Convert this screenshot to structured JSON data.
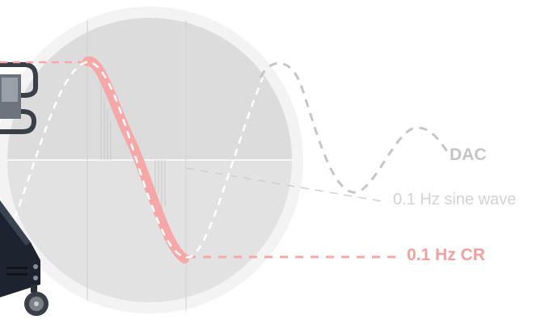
{
  "labels": {
    "dac": "DAC",
    "sine": "0.1 Hz sine wave",
    "cr": "0.1 Hz CR"
  },
  "colors": {
    "background": "#ffffff",
    "circle_ring": "#f3f3f3",
    "circle_fill": "#dcdcdc",
    "dac_text": "#c4c4c4",
    "sine_text": "#d2d2d2",
    "sine_curve": "#c6c6c6",
    "cr_accent": "#f6a8a8",
    "cr_text": "#f3a0a0",
    "inner_dashed": "#ffffff",
    "device": "#1d2430"
  },
  "icons": {
    "device": "laboratory-instrument-on-cart"
  }
}
